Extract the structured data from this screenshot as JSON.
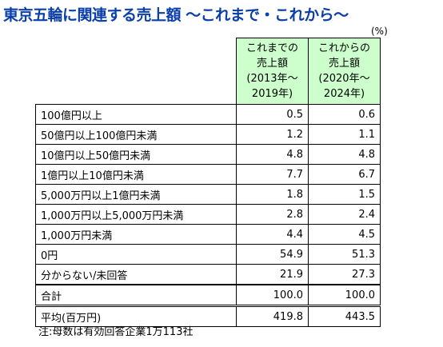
{
  "title": "東京五輪に関連する売上額 〜これまで・これから〜",
  "unit": "(%)",
  "chart_data": {
    "type": "table",
    "columns": [
      {
        "line1": "これまでの",
        "line2": "売上額",
        "line3": "(2013年〜",
        "line4": "2019年)"
      },
      {
        "line1": "これからの",
        "line2": "売上額",
        "line3": "(2020年〜",
        "line4": "2024年)"
      }
    ],
    "rows": [
      {
        "label": "100億円以上",
        "past": "0.5",
        "future": "0.6"
      },
      {
        "label": "50億円以上100億円未満",
        "past": "1.2",
        "future": "1.1"
      },
      {
        "label": "10億円以上50億円未満",
        "past": "4.8",
        "future": "4.8"
      },
      {
        "label": "1億円以上10億円未満",
        "past": "7.7",
        "future": "6.7"
      },
      {
        "label": "5,000万円以上1億円未満",
        "past": "1.8",
        "future": "1.5"
      },
      {
        "label": "1,000万円以上5,000万円未満",
        "past": "2.8",
        "future": "2.4"
      },
      {
        "label": "1,000万円未満",
        "past": "4.4",
        "future": "4.5"
      },
      {
        "label": "0円",
        "past": "54.9",
        "future": "51.3"
      },
      {
        "label": "分からない/未回答",
        "past": "21.9",
        "future": "27.3"
      }
    ],
    "total": {
      "label": "合計",
      "past": "100.0",
      "future": "100.0"
    },
    "average": {
      "label": "平均(百万円)",
      "past": "419.8",
      "future": "443.5"
    }
  },
  "note": "注:母数は有効回答企業1万113社"
}
